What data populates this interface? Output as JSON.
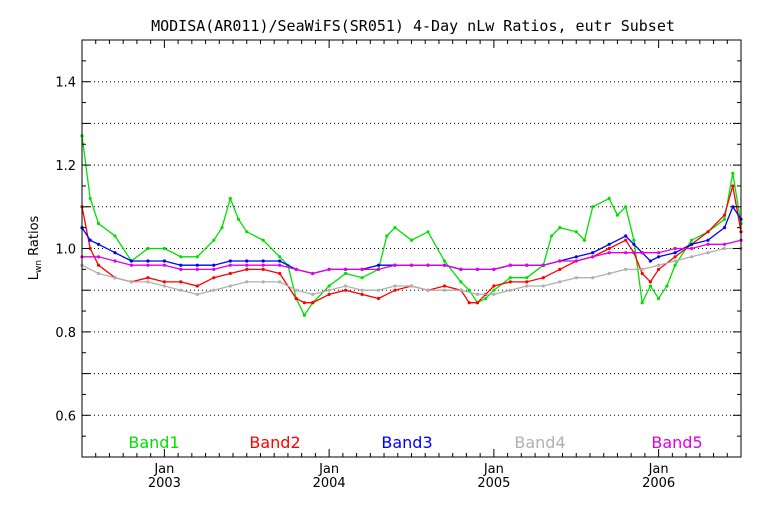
{
  "chart_data": {
    "type": "line",
    "title": "MODISA(AR011)/SeaWiFS(SR051) 4-Day nLw Ratios, eutr Subset",
    "ylabel": "L",
    "ylabel_sub": "wn",
    "ylabel_rest": " Ratios",
    "ylim": [
      0.5,
      1.5
    ],
    "yticks": [
      0.6,
      0.8,
      1.0,
      1.2,
      1.4
    ],
    "ytick_labels": [
      "0.6",
      "0.8",
      "1.0",
      "1.2",
      "1.4"
    ],
    "ygrid": [
      0.6,
      0.7,
      0.8,
      0.9,
      1.0,
      1.1,
      1.2,
      1.3,
      1.4
    ],
    "xlim": [
      2002.5,
      2006.5
    ],
    "xticks": [
      {
        "x": 2003.0,
        "month": "Jan",
        "year": "2003"
      },
      {
        "x": 2004.0,
        "month": "Jan",
        "year": "2004"
      },
      {
        "x": 2005.0,
        "month": "Jan",
        "year": "2005"
      },
      {
        "x": 2006.0,
        "month": "Jan",
        "year": "2006"
      }
    ],
    "grid": true,
    "x_minor_ticks_per_year": 12,
    "series": [
      {
        "name": "Band1",
        "color": "#00e000",
        "points": [
          [
            2002.5,
            1.27
          ],
          [
            2002.55,
            1.12
          ],
          [
            2002.6,
            1.06
          ],
          [
            2002.7,
            1.03
          ],
          [
            2002.8,
            0.97
          ],
          [
            2002.9,
            1.0
          ],
          [
            2003.0,
            1.0
          ],
          [
            2003.1,
            0.98
          ],
          [
            2003.2,
            0.98
          ],
          [
            2003.3,
            1.02
          ],
          [
            2003.35,
            1.05
          ],
          [
            2003.4,
            1.12
          ],
          [
            2003.45,
            1.07
          ],
          [
            2003.5,
            1.04
          ],
          [
            2003.6,
            1.02
          ],
          [
            2003.7,
            0.98
          ],
          [
            2003.75,
            0.96
          ],
          [
            2003.8,
            0.88
          ],
          [
            2003.85,
            0.84
          ],
          [
            2003.9,
            0.87
          ],
          [
            2004.0,
            0.91
          ],
          [
            2004.1,
            0.94
          ],
          [
            2004.2,
            0.93
          ],
          [
            2004.3,
            0.95
          ],
          [
            2004.35,
            1.03
          ],
          [
            2004.4,
            1.05
          ],
          [
            2004.5,
            1.02
          ],
          [
            2004.6,
            1.04
          ],
          [
            2004.7,
            0.97
          ],
          [
            2004.8,
            0.92
          ],
          [
            2004.85,
            0.9
          ],
          [
            2004.9,
            0.87
          ],
          [
            2004.95,
            0.88
          ],
          [
            2005.0,
            0.9
          ],
          [
            2005.1,
            0.93
          ],
          [
            2005.2,
            0.93
          ],
          [
            2005.3,
            0.96
          ],
          [
            2005.35,
            1.03
          ],
          [
            2005.4,
            1.05
          ],
          [
            2005.5,
            1.04
          ],
          [
            2005.55,
            1.02
          ],
          [
            2005.6,
            1.1
          ],
          [
            2005.7,
            1.12
          ],
          [
            2005.75,
            1.08
          ],
          [
            2005.8,
            1.1
          ],
          [
            2005.85,
            1.02
          ],
          [
            2005.9,
            0.87
          ],
          [
            2005.95,
            0.91
          ],
          [
            2006.0,
            0.88
          ],
          [
            2006.05,
            0.91
          ],
          [
            2006.1,
            0.96
          ],
          [
            2006.2,
            1.02
          ],
          [
            2006.3,
            1.04
          ],
          [
            2006.4,
            1.07
          ],
          [
            2006.45,
            1.18
          ],
          [
            2006.5,
            1.06
          ]
        ]
      },
      {
        "name": "Band2",
        "color": "#ff0000",
        "points": [
          [
            2002.5,
            1.1
          ],
          [
            2002.55,
            1.0
          ],
          [
            2002.6,
            0.96
          ],
          [
            2002.7,
            0.93
          ],
          [
            2002.8,
            0.92
          ],
          [
            2002.9,
            0.93
          ],
          [
            2003.0,
            0.92
          ],
          [
            2003.1,
            0.92
          ],
          [
            2003.2,
            0.91
          ],
          [
            2003.3,
            0.93
          ],
          [
            2003.4,
            0.94
          ],
          [
            2003.5,
            0.95
          ],
          [
            2003.6,
            0.95
          ],
          [
            2003.7,
            0.94
          ],
          [
            2003.8,
            0.88
          ],
          [
            2003.85,
            0.87
          ],
          [
            2003.9,
            0.87
          ],
          [
            2004.0,
            0.89
          ],
          [
            2004.1,
            0.9
          ],
          [
            2004.2,
            0.89
          ],
          [
            2004.3,
            0.88
          ],
          [
            2004.4,
            0.9
          ],
          [
            2004.5,
            0.91
          ],
          [
            2004.6,
            0.9
          ],
          [
            2004.7,
            0.91
          ],
          [
            2004.8,
            0.9
          ],
          [
            2004.85,
            0.87
          ],
          [
            2004.9,
            0.87
          ],
          [
            2004.95,
            0.89
          ],
          [
            2005.0,
            0.91
          ],
          [
            2005.1,
            0.92
          ],
          [
            2005.2,
            0.92
          ],
          [
            2005.3,
            0.93
          ],
          [
            2005.4,
            0.95
          ],
          [
            2005.5,
            0.97
          ],
          [
            2005.6,
            0.98
          ],
          [
            2005.7,
            1.0
          ],
          [
            2005.8,
            1.02
          ],
          [
            2005.85,
            0.99
          ],
          [
            2005.9,
            0.94
          ],
          [
            2005.95,
            0.92
          ],
          [
            2006.0,
            0.95
          ],
          [
            2006.1,
            0.98
          ],
          [
            2006.2,
            1.01
          ],
          [
            2006.3,
            1.04
          ],
          [
            2006.4,
            1.08
          ],
          [
            2006.45,
            1.15
          ],
          [
            2006.5,
            1.04
          ]
        ]
      },
      {
        "name": "Band3",
        "color": "#0000ff",
        "points": [
          [
            2002.5,
            1.05
          ],
          [
            2002.55,
            1.02
          ],
          [
            2002.6,
            1.01
          ],
          [
            2002.7,
            0.99
          ],
          [
            2002.8,
            0.97
          ],
          [
            2002.9,
            0.97
          ],
          [
            2003.0,
            0.97
          ],
          [
            2003.1,
            0.96
          ],
          [
            2003.2,
            0.96
          ],
          [
            2003.3,
            0.96
          ],
          [
            2003.4,
            0.97
          ],
          [
            2003.5,
            0.97
          ],
          [
            2003.6,
            0.97
          ],
          [
            2003.7,
            0.97
          ],
          [
            2003.8,
            0.95
          ],
          [
            2003.9,
            0.94
          ],
          [
            2004.0,
            0.95
          ],
          [
            2004.1,
            0.95
          ],
          [
            2004.2,
            0.95
          ],
          [
            2004.3,
            0.96
          ],
          [
            2004.4,
            0.96
          ],
          [
            2004.5,
            0.96
          ],
          [
            2004.6,
            0.96
          ],
          [
            2004.7,
            0.96
          ],
          [
            2004.8,
            0.95
          ],
          [
            2004.9,
            0.95
          ],
          [
            2005.0,
            0.95
          ],
          [
            2005.1,
            0.96
          ],
          [
            2005.2,
            0.96
          ],
          [
            2005.3,
            0.96
          ],
          [
            2005.4,
            0.97
          ],
          [
            2005.5,
            0.98
          ],
          [
            2005.6,
            0.99
          ],
          [
            2005.7,
            1.01
          ],
          [
            2005.8,
            1.03
          ],
          [
            2005.85,
            1.01
          ],
          [
            2005.9,
            0.99
          ],
          [
            2005.95,
            0.97
          ],
          [
            2006.0,
            0.98
          ],
          [
            2006.1,
            0.99
          ],
          [
            2006.2,
            1.01
          ],
          [
            2006.3,
            1.02
          ],
          [
            2006.4,
            1.05
          ],
          [
            2006.45,
            1.1
          ],
          [
            2006.5,
            1.07
          ]
        ]
      },
      {
        "name": "Band4",
        "color": "#b0b0b0",
        "points": [
          [
            2002.5,
            0.96
          ],
          [
            2002.6,
            0.94
          ],
          [
            2002.7,
            0.93
          ],
          [
            2002.8,
            0.92
          ],
          [
            2002.9,
            0.92
          ],
          [
            2003.0,
            0.91
          ],
          [
            2003.1,
            0.9
          ],
          [
            2003.2,
            0.89
          ],
          [
            2003.3,
            0.9
          ],
          [
            2003.4,
            0.91
          ],
          [
            2003.5,
            0.92
          ],
          [
            2003.6,
            0.92
          ],
          [
            2003.7,
            0.92
          ],
          [
            2003.8,
            0.9
          ],
          [
            2003.9,
            0.89
          ],
          [
            2004.0,
            0.9
          ],
          [
            2004.1,
            0.91
          ],
          [
            2004.2,
            0.9
          ],
          [
            2004.3,
            0.9
          ],
          [
            2004.4,
            0.91
          ],
          [
            2004.5,
            0.91
          ],
          [
            2004.6,
            0.9
          ],
          [
            2004.7,
            0.9
          ],
          [
            2004.8,
            0.9
          ],
          [
            2004.9,
            0.89
          ],
          [
            2005.0,
            0.89
          ],
          [
            2005.1,
            0.9
          ],
          [
            2005.2,
            0.91
          ],
          [
            2005.3,
            0.91
          ],
          [
            2005.4,
            0.92
          ],
          [
            2005.5,
            0.93
          ],
          [
            2005.6,
            0.93
          ],
          [
            2005.7,
            0.94
          ],
          [
            2005.8,
            0.95
          ],
          [
            2005.9,
            0.95
          ],
          [
            2006.0,
            0.96
          ],
          [
            2006.1,
            0.97
          ],
          [
            2006.2,
            0.98
          ],
          [
            2006.3,
            0.99
          ],
          [
            2006.4,
            1.0
          ],
          [
            2006.5,
            1.0
          ]
        ]
      },
      {
        "name": "Band5",
        "color": "#e000e0",
        "points": [
          [
            2002.5,
            0.98
          ],
          [
            2002.6,
            0.98
          ],
          [
            2002.7,
            0.97
          ],
          [
            2002.8,
            0.96
          ],
          [
            2002.9,
            0.96
          ],
          [
            2003.0,
            0.96
          ],
          [
            2003.1,
            0.95
          ],
          [
            2003.2,
            0.95
          ],
          [
            2003.3,
            0.95
          ],
          [
            2003.4,
            0.96
          ],
          [
            2003.5,
            0.96
          ],
          [
            2003.6,
            0.96
          ],
          [
            2003.7,
            0.96
          ],
          [
            2003.8,
            0.95
          ],
          [
            2003.9,
            0.94
          ],
          [
            2004.0,
            0.95
          ],
          [
            2004.1,
            0.95
          ],
          [
            2004.2,
            0.95
          ],
          [
            2004.3,
            0.95
          ],
          [
            2004.4,
            0.96
          ],
          [
            2004.5,
            0.96
          ],
          [
            2004.6,
            0.96
          ],
          [
            2004.7,
            0.96
          ],
          [
            2004.8,
            0.95
          ],
          [
            2004.9,
            0.95
          ],
          [
            2005.0,
            0.95
          ],
          [
            2005.1,
            0.96
          ],
          [
            2005.2,
            0.96
          ],
          [
            2005.3,
            0.96
          ],
          [
            2005.4,
            0.97
          ],
          [
            2005.5,
            0.97
          ],
          [
            2005.6,
            0.98
          ],
          [
            2005.7,
            0.99
          ],
          [
            2005.8,
            0.99
          ],
          [
            2005.9,
            0.99
          ],
          [
            2006.0,
            0.99
          ],
          [
            2006.1,
            1.0
          ],
          [
            2006.2,
            1.0
          ],
          [
            2006.3,
            1.01
          ],
          [
            2006.4,
            1.01
          ],
          [
            2006.5,
            1.02
          ]
        ]
      }
    ]
  }
}
